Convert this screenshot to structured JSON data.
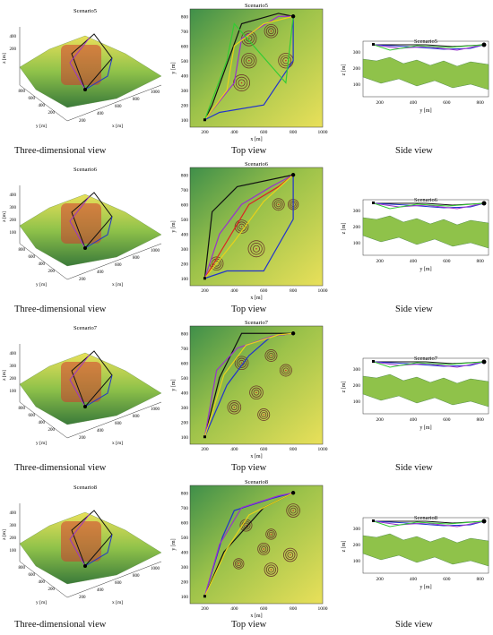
{
  "captions": {
    "three_d": "Three-dimensional view",
    "top": "Top view",
    "side": "Side view"
  },
  "colors": {
    "terrain_light": "#e9e05a",
    "terrain_mid": "#8fc24a",
    "terrain_dark": "#3a7a3a",
    "threat_red": "#d63a2e",
    "threat_ring": "#6b3a2a",
    "black_path": "#111111",
    "blue_path": "#2233cc",
    "purple_path": "#9933cc",
    "green_path": "#33cc33",
    "yellow_path": "#e8d21a",
    "orange_path": "#ff8800",
    "red_path": "#dd2222"
  },
  "rows": [
    {
      "scenario": "Scenario5",
      "three_d": {
        "title": "Scenario5",
        "zlabel": "z [m]",
        "xlabel": "x [m]",
        "ylabel": "y [m]",
        "zticks": [
          "400",
          "200"
        ],
        "yticks": [
          "800",
          "600",
          "400",
          "200"
        ],
        "xticks": [
          "200",
          "400",
          "600",
          "800",
          "1000"
        ]
      },
      "top": {
        "title": "Scenario5",
        "xlabel": "x [m]",
        "ylabel": "y [m]",
        "xticks": [
          "200",
          "400",
          "600",
          "800",
          "1000"
        ],
        "yticks": [
          "800",
          "700",
          "600",
          "500",
          "400",
          "300",
          "200",
          "100"
        ]
      },
      "side": {
        "title": "Scenario5",
        "xlabel": "y [m]",
        "ylabel": "z [m]",
        "xticks": [
          "200",
          "400",
          "600",
          "800"
        ],
        "yticks": [
          "300",
          "200",
          "100"
        ]
      }
    },
    {
      "scenario": "Scenario6",
      "three_d": {
        "title": "Scenario6",
        "zlabel": "z [m]",
        "xlabel": "x [m]",
        "ylabel": "y [m]",
        "zticks": [
          "400",
          "300",
          "200",
          "100"
        ],
        "yticks": [
          "800",
          "600",
          "400",
          "200"
        ],
        "xticks": [
          "200",
          "400",
          "600",
          "800",
          "1000"
        ]
      },
      "top": {
        "title": "Scenario6",
        "xlabel": "x [m]",
        "ylabel": "y [m]",
        "xticks": [
          "200",
          "400",
          "600",
          "800",
          "1000"
        ],
        "yticks": [
          "800",
          "700",
          "600",
          "500",
          "400",
          "300",
          "200",
          "100"
        ]
      },
      "side": {
        "title": "Scenario6",
        "xlabel": "y [m]",
        "ylabel": "z [m]",
        "xticks": [
          "200",
          "400",
          "600",
          "800"
        ],
        "yticks": [
          "300",
          "200",
          "100"
        ]
      }
    },
    {
      "scenario": "Scenario7",
      "three_d": {
        "title": "Scenario7",
        "zlabel": "z [m]",
        "xlabel": "x [m]",
        "ylabel": "y [m]",
        "zticks": [
          "400",
          "300",
          "200",
          "100"
        ],
        "yticks": [
          "800",
          "600",
          "400",
          "200"
        ],
        "xticks": [
          "200",
          "400",
          "600",
          "800",
          "1000"
        ]
      },
      "top": {
        "title": "Scenario7",
        "xlabel": "x [m]",
        "ylabel": "y [m]",
        "xticks": [
          "200",
          "400",
          "600",
          "800",
          "1000"
        ],
        "yticks": [
          "800",
          "700",
          "600",
          "500",
          "400",
          "300",
          "200",
          "100"
        ]
      },
      "side": {
        "title": "Scenario7",
        "xlabel": "y [m]",
        "ylabel": "z [m]",
        "xticks": [
          "200",
          "400",
          "600",
          "800"
        ],
        "yticks": [
          "300",
          "200",
          "100"
        ]
      }
    },
    {
      "scenario": "Scenario8",
      "three_d": {
        "title": "Scenario8",
        "zlabel": "z [m]",
        "xlabel": "x [m]",
        "ylabel": "y [m]",
        "zticks": [
          "400",
          "300",
          "200",
          "100"
        ],
        "yticks": [
          "800",
          "600",
          "400",
          "200"
        ],
        "xticks": [
          "200",
          "400",
          "600",
          "800",
          "1000"
        ]
      },
      "top": {
        "title": "Scenario8",
        "xlabel": "x [m]",
        "ylabel": "y [m]",
        "xticks": [
          "200",
          "400",
          "600",
          "800",
          "1000"
        ],
        "yticks": [
          "800",
          "700",
          "600",
          "500",
          "400",
          "300",
          "200",
          "100"
        ]
      },
      "side": {
        "title": "Scenario8",
        "xlabel": "y [m]",
        "ylabel": "z [m]",
        "xticks": [
          "200",
          "400",
          "600",
          "800"
        ],
        "yticks": [
          "300",
          "200",
          "100"
        ]
      }
    }
  ],
  "chart_data": [
    {
      "type": "line",
      "title": "Scenario5",
      "xlabel": "x [m]",
      "ylabel": "y [m]",
      "xlim": [
        100,
        1000
      ],
      "ylim": [
        50,
        850
      ],
      "start": [
        200,
        100
      ],
      "goal": [
        800,
        800
      ],
      "threats": [
        [
          500,
          650,
          50
        ],
        [
          650,
          700,
          45
        ],
        [
          500,
          500,
          50
        ],
        [
          750,
          500,
          50
        ],
        [
          450,
          350,
          55
        ]
      ],
      "series": [
        {
          "color": "black",
          "x": [
            200,
            250,
            450,
            700,
            800
          ],
          "y": [
            100,
            200,
            750,
            820,
            800
          ]
        },
        {
          "color": "blue",
          "x": [
            200,
            300,
            600,
            800,
            800
          ],
          "y": [
            100,
            150,
            200,
            500,
            800
          ]
        },
        {
          "color": "purple",
          "x": [
            200,
            400,
            450,
            700,
            800
          ],
          "y": [
            100,
            350,
            650,
            800,
            800
          ]
        },
        {
          "color": "yellow",
          "x": [
            200,
            350,
            400,
            600,
            800
          ],
          "y": [
            100,
            300,
            600,
            750,
            800
          ]
        },
        {
          "color": "green",
          "x": [
            200,
            350,
            400,
            750,
            800
          ],
          "y": [
            100,
            500,
            750,
            350,
            800
          ]
        }
      ]
    },
    {
      "type": "line",
      "title": "Scenario6",
      "xlabel": "x [m]",
      "ylabel": "y [m]",
      "xlim": [
        100,
        1000
      ],
      "ylim": [
        50,
        850
      ],
      "start": [
        200,
        100
      ],
      "goal": [
        800,
        800
      ],
      "threats": [
        [
          700,
          600,
          40
        ],
        [
          450,
          450,
          45
        ],
        [
          280,
          200,
          45
        ],
        [
          550,
          300,
          55
        ],
        [
          800,
          600,
          35
        ]
      ],
      "series": [
        {
          "color": "black",
          "x": [
            200,
            250,
            420,
            800
          ],
          "y": [
            100,
            550,
            720,
            800
          ]
        },
        {
          "color": "blue",
          "x": [
            200,
            350,
            600,
            800,
            800
          ],
          "y": [
            100,
            150,
            150,
            500,
            800
          ]
        },
        {
          "color": "purple",
          "x": [
            200,
            300,
            450,
            650,
            800
          ],
          "y": [
            100,
            400,
            600,
            720,
            800
          ]
        },
        {
          "color": "red",
          "x": [
            200,
            350,
            500,
            700,
            800
          ],
          "y": [
            100,
            350,
            600,
            720,
            800
          ]
        },
        {
          "color": "yellow",
          "x": [
            200,
            400,
            600,
            800
          ],
          "y": [
            100,
            350,
            620,
            800
          ]
        }
      ]
    },
    {
      "type": "line",
      "title": "Scenario7",
      "xlabel": "x [m]",
      "ylabel": "y [m]",
      "xlim": [
        100,
        1000
      ],
      "ylim": [
        50,
        850
      ],
      "start": [
        200,
        100
      ],
      "goal": [
        800,
        800
      ],
      "threats": [
        [
          450,
          600,
          45
        ],
        [
          650,
          650,
          40
        ],
        [
          750,
          550,
          40
        ],
        [
          550,
          400,
          45
        ],
        [
          400,
          300,
          45
        ],
        [
          600,
          250,
          40
        ]
      ],
      "series": [
        {
          "color": "black",
          "x": [
            200,
            300,
            450,
            800
          ],
          "y": [
            100,
            500,
            800,
            800
          ]
        },
        {
          "color": "blue",
          "x": [
            200,
            350,
            500,
            650,
            800
          ],
          "y": [
            100,
            450,
            650,
            780,
            800
          ]
        },
        {
          "color": "purple",
          "x": [
            200,
            280,
            420,
            650,
            800
          ],
          "y": [
            100,
            550,
            700,
            780,
            800
          ]
        },
        {
          "color": "yellow",
          "x": [
            200,
            330,
            480,
            700,
            800
          ],
          "y": [
            100,
            520,
            720,
            790,
            800
          ]
        }
      ]
    },
    {
      "type": "line",
      "title": "Scenario8",
      "xlabel": "x [m]",
      "ylabel": "y [m]",
      "xlim": [
        100,
        1000
      ],
      "ylim": [
        50,
        850
      ],
      "start": [
        200,
        100
      ],
      "goal": [
        800,
        800
      ],
      "threats": [
        [
          800,
          680,
          45
        ],
        [
          480,
          580,
          40
        ],
        [
          650,
          520,
          35
        ],
        [
          600,
          420,
          40
        ],
        [
          780,
          380,
          45
        ],
        [
          430,
          320,
          35
        ],
        [
          650,
          280,
          45
        ]
      ],
      "series": [
        {
          "color": "black",
          "x": [
            200,
            330,
            600,
            800
          ],
          "y": [
            100,
            400,
            700,
            800
          ]
        },
        {
          "color": "blue",
          "x": [
            200,
            320,
            400,
            650,
            800
          ],
          "y": [
            100,
            500,
            680,
            760,
            800
          ]
        },
        {
          "color": "purple",
          "x": [
            200,
            300,
            450,
            700,
            800
          ],
          "y": [
            100,
            450,
            700,
            780,
            800
          ]
        },
        {
          "color": "yellow",
          "x": [
            200,
            350,
            500,
            720,
            800
          ],
          "y": [
            100,
            420,
            650,
            760,
            800
          ]
        }
      ]
    }
  ]
}
